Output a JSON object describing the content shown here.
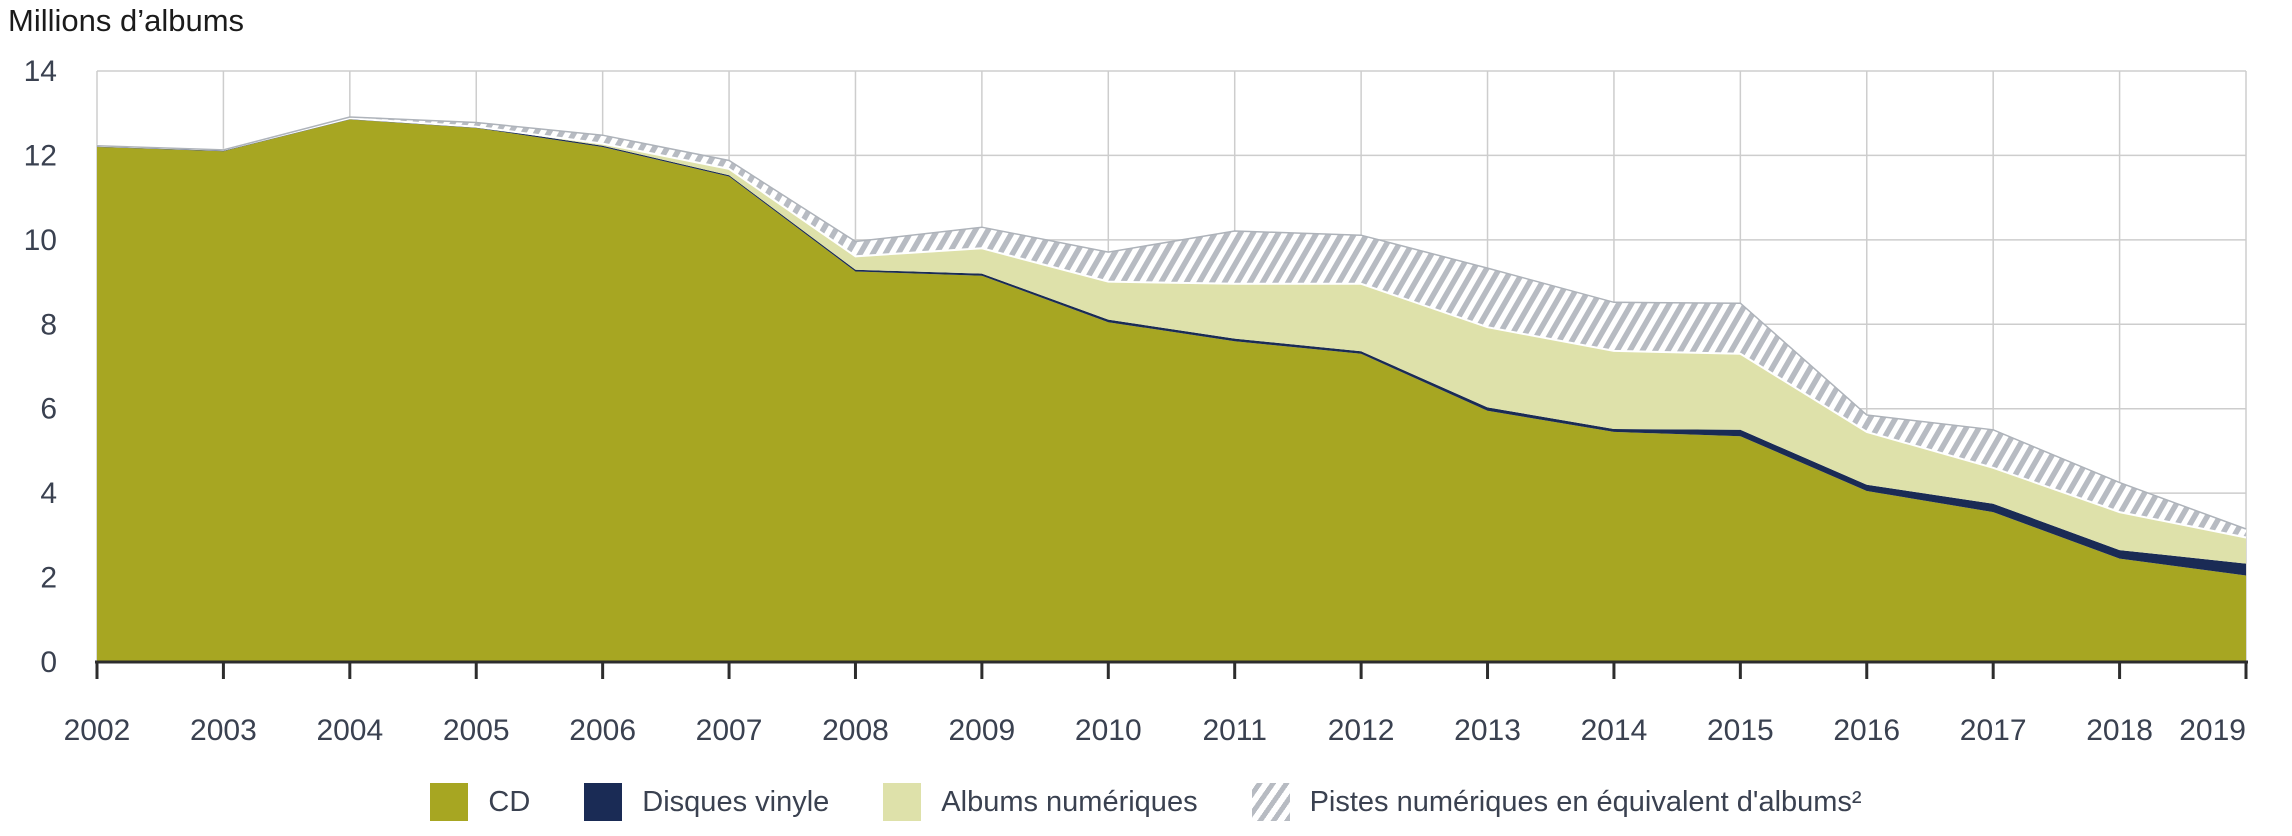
{
  "title": "Millions d’albums",
  "chart_data": {
    "type": "area",
    "stacked": true,
    "title": "Millions d’albums",
    "x": [
      2002,
      2003,
      2004,
      2005,
      2006,
      2007,
      2008,
      2009,
      2010,
      2011,
      2012,
      2013,
      2014,
      2015,
      2016,
      2017,
      2018,
      2019
    ],
    "ylim": [
      0,
      14
    ],
    "yticks": [
      0,
      2,
      4,
      6,
      8,
      10,
      12,
      14
    ],
    "grid": true,
    "legend_position": "bottom",
    "series": [
      {
        "name": "CD",
        "color": "#a7a622",
        "values": [
          12.2,
          12.1,
          12.85,
          12.65,
          12.2,
          11.5,
          9.25,
          9.15,
          8.05,
          7.6,
          7.3,
          5.95,
          5.45,
          5.35,
          4.05,
          3.55,
          2.45,
          2.05
        ]
      },
      {
        "name": "Disques vinyle",
        "color": "#1a2b55",
        "values": [
          0.03,
          0.03,
          0.03,
          0.03,
          0.03,
          0.03,
          0.04,
          0.05,
          0.06,
          0.06,
          0.06,
          0.08,
          0.07,
          0.15,
          0.15,
          0.2,
          0.2,
          0.28
        ]
      },
      {
        "name": "Albums numériques",
        "color": "#dee1aa",
        "values": [
          0,
          0,
          0,
          0,
          0.05,
          0.15,
          0.32,
          0.6,
          0.9,
          1.3,
          1.6,
          1.9,
          1.85,
          1.8,
          1.25,
          0.85,
          0.9,
          0.62
        ]
      },
      {
        "name": "Pistes numériques en équivalent d'albums²",
        "pattern": "diagonal-hatch",
        "color": "#b7bbc2",
        "values": [
          0,
          0,
          0.03,
          0.1,
          0.2,
          0.2,
          0.35,
          0.5,
          0.7,
          1.25,
          1.15,
          1.4,
          1.15,
          1.2,
          0.4,
          0.9,
          0.7,
          0.2
        ]
      }
    ],
    "colors": {
      "axis": "#2d2d2d",
      "grid": "#cdcdcd",
      "labels": "#3a4150",
      "hatch_stripe": "#b7bbc2",
      "hatch_background": "#ffffff",
      "hatch_edge": "#aeb3ba",
      "band_separator": "#ffffff"
    }
  }
}
